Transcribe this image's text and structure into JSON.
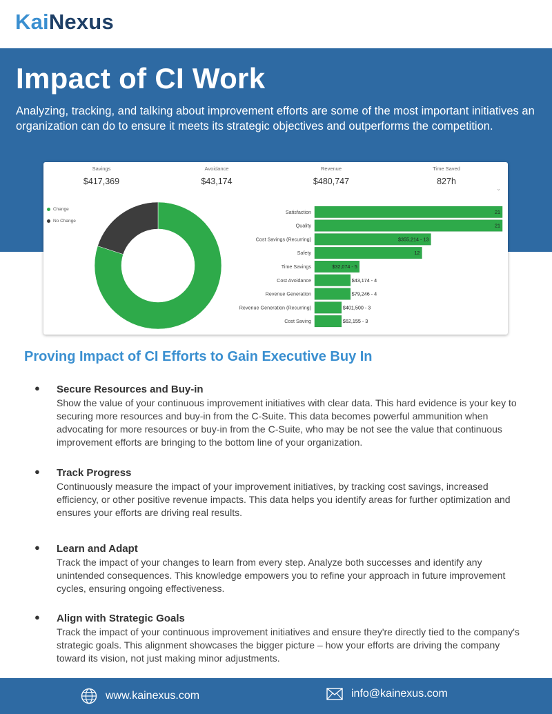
{
  "brand": {
    "part1": "Kai",
    "part2": "Nexus"
  },
  "hero": {
    "title": "Impact of CI Work",
    "description": "Analyzing, tracking, and talking about improvement efforts are some of the most important initiatives an organization can do to ensure it meets its strategic objectives and outperforms the competition."
  },
  "dashboard": {
    "kpis": [
      {
        "label": "Savings",
        "value": "$417,369"
      },
      {
        "label": "Avoidance",
        "value": "$43,174"
      },
      {
        "label": "Revenue",
        "value": "$480,747"
      },
      {
        "label": "Time Saved",
        "value": "827h"
      }
    ],
    "chevron_icon": "chevron-down-icon"
  },
  "chart_data": [
    {
      "type": "pie",
      "style": "donut",
      "categories": [
        "Change",
        "No Change"
      ],
      "values": [
        80,
        20
      ],
      "colors": [
        "#2eaa4a",
        "#3d3d3d"
      ],
      "legend_position": "top-left"
    },
    {
      "type": "bar",
      "orientation": "horizontal",
      "categories": [
        "Satisfaction",
        "Quality",
        "Cost Savings (Recurring)",
        "Safety",
        "Time Savings",
        "Cost Avoidance",
        "Revenue Generation",
        "Revenue Generation (Recurring)",
        "Cost Saving"
      ],
      "values": [
        21,
        21,
        13,
        12,
        5,
        4,
        4,
        3,
        3
      ],
      "data_labels": [
        "21",
        "21",
        "$355,214 - 13",
        "12",
        "$32,074 - 5",
        "$43,174 - 4",
        "$79,246 - 4",
        "$401,500 - 3",
        "$62,155 - 3"
      ],
      "xlim": [
        0,
        21
      ],
      "color": "#2eaa4a"
    }
  ],
  "section": {
    "title": "Proving Impact of CI Efforts to Gain Executive Buy In",
    "bullet_symbol": "●",
    "items": [
      {
        "title": "Secure Resources and Buy-in",
        "text": "Show the value of your continuous improvement initiatives with clear data. This hard evidence is your key to securing more resources and buy-in from the C-Suite. This data becomes powerful ammunition when advocating for more resources or buy-in from the C-Suite, who may be not see the value that continuous improvement efforts are bringing to the bottom line of your organization."
      },
      {
        "title": "Track Progress",
        "text": "Continuously measure the impact of your improvement initiatives, by tracking cost savings, increased efficiency, or other positive revenue impacts. This data helps you identify areas for further optimization and ensures your efforts are driving real results."
      },
      {
        "title": "Learn and Adapt",
        "text": "Track the impact of your changes to learn from every step. Analyze both successes and identify any unintended consequences. This knowledge empowers you to refine your approach in future improvement cycles, ensuring ongoing effectiveness."
      },
      {
        "title": "Align with Strategic Goals",
        "text": "Track the impact of your continuous improvement initiatives and ensure they're directly tied to the company's strategic goals. This alignment showcases the bigger picture – how your efforts are driving the company toward its vision, not just making minor adjustments."
      }
    ]
  },
  "footer": {
    "website": "www.kainexus.com",
    "email": "info@kainexus.com",
    "website_icon": "globe-icon",
    "email_icon": "envelope-icon"
  }
}
